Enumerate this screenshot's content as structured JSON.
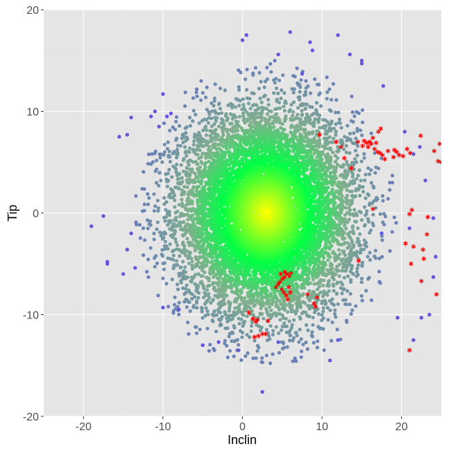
{
  "chart_data": {
    "type": "scatter",
    "title": "",
    "xlabel": "Inclin",
    "ylabel": "Tip",
    "xlim": [
      -25,
      25
    ],
    "ylim": [
      -20,
      20
    ],
    "x_ticks": [
      -20,
      -10,
      0,
      10,
      20
    ],
    "y_ticks": [
      -20,
      -10,
      0,
      10,
      20
    ],
    "x_tick_labels": [
      "-20",
      "-10",
      "0",
      "10",
      "20"
    ],
    "y_tick_labels": [
      "-20",
      "-10",
      "0",
      "10",
      "20"
    ],
    "grid": true,
    "legend": "none",
    "colors": {
      "panel_background": "#e5e5e5",
      "grid_major": "#ffffff",
      "grid_minor": "#f2f2f2",
      "core": "#ffff00",
      "mid": "#00ff44",
      "outer": "#7fb08c",
      "edge": "#6a7fb8",
      "outlier": "#6655dd",
      "flagged": "#ff0000"
    },
    "cloud": {
      "center": [
        3.0,
        0.0
      ],
      "spread": [
        5.6,
        5.1
      ]
    },
    "outlier_points": [
      [
        -19,
        -1.3
      ],
      [
        -17.5,
        -0.3
      ],
      [
        -15.5,
        7.5
      ],
      [
        -14.5,
        7.7
      ],
      [
        -14,
        9.4
      ],
      [
        -17,
        -5
      ],
      [
        -17,
        -4.8
      ],
      [
        -15,
        -6
      ],
      [
        -14.5,
        -3.6
      ],
      [
        -14,
        -2
      ],
      [
        -13.5,
        -5.4
      ],
      [
        -11.5,
        9.5
      ],
      [
        -11,
        10
      ],
      [
        -10,
        11.7
      ],
      [
        -9.5,
        9.5
      ],
      [
        -10.5,
        8.5
      ],
      [
        -10,
        -9.3
      ],
      [
        -8,
        -9.5
      ],
      [
        -3,
        -12.7
      ],
      [
        -0.5,
        -13.5
      ],
      [
        2.5,
        -17.6
      ],
      [
        11,
        -14.5
      ],
      [
        12,
        -12.5
      ],
      [
        7.5,
        13.7
      ],
      [
        6,
        17.8
      ],
      [
        12,
        17.5
      ],
      [
        4.5,
        15.6
      ],
      [
        0,
        17
      ],
      [
        0.5,
        17.5
      ],
      [
        8.5,
        16.8
      ],
      [
        8.8,
        16
      ],
      [
        13.5,
        15.6
      ],
      [
        15,
        15
      ],
      [
        15,
        14.7
      ],
      [
        17.7,
        12.5
      ],
      [
        20.4,
        8
      ],
      [
        22.3,
        6.5
      ],
      [
        21.5,
        5.8
      ],
      [
        23,
        3.2
      ],
      [
        24,
        -0.5
      ],
      [
        24,
        -6.3
      ],
      [
        23.5,
        -10
      ],
      [
        22.5,
        -10.3
      ],
      [
        21.5,
        -12.5
      ],
      [
        19.5,
        -10.3
      ],
      [
        17.5,
        -2
      ],
      [
        21,
        -1.5
      ],
      [
        24.3,
        -4.3
      ],
      [
        -5,
        -13
      ],
      [
        4.5,
        -12.7
      ],
      [
        -9,
        9.8
      ]
    ],
    "flagged_points": [
      [
        9.7,
        7.7
      ],
      [
        11.8,
        7
      ],
      [
        12.4,
        6.5
      ],
      [
        12.8,
        5.4
      ],
      [
        13.7,
        4.4
      ],
      [
        14.5,
        7
      ],
      [
        15.1,
        6.6
      ],
      [
        15.3,
        7.1
      ],
      [
        15.6,
        6.9
      ],
      [
        15.8,
        6.5
      ],
      [
        16,
        7
      ],
      [
        16.2,
        6.8
      ],
      [
        16.4,
        7.4
      ],
      [
        16.6,
        6.3
      ],
      [
        16.8,
        6.9
      ],
      [
        17.1,
        8
      ],
      [
        17.4,
        8.3
      ],
      [
        17,
        6
      ],
      [
        17.3,
        5.9
      ],
      [
        17.6,
        5.7
      ],
      [
        17.9,
        5.3
      ],
      [
        18.3,
        6.1
      ],
      [
        19.1,
        6.2
      ],
      [
        19.4,
        6
      ],
      [
        19.7,
        5.7
      ],
      [
        19,
        5.5
      ],
      [
        20.2,
        5.6
      ],
      [
        20.7,
        6.3
      ],
      [
        21.1,
        5.9
      ],
      [
        22.4,
        7.6
      ],
      [
        24.1,
        6.1
      ],
      [
        24.8,
        6.8
      ],
      [
        25,
        5
      ],
      [
        24.6,
        5.1
      ],
      [
        16.4,
        0.4
      ],
      [
        21.3,
        0.3
      ],
      [
        21,
        -0.1
      ],
      [
        20.5,
        -3
      ],
      [
        21.5,
        -3.3
      ],
      [
        21.2,
        -5
      ],
      [
        22.7,
        -3.6
      ],
      [
        22.8,
        -4.5
      ],
      [
        23.2,
        -2.1
      ],
      [
        23.3,
        -0.4
      ],
      [
        24.4,
        -8
      ],
      [
        22.5,
        -6.7
      ],
      [
        14.6,
        -4.7
      ],
      [
        4.2,
        -7.3
      ],
      [
        4.5,
        -7.0
      ],
      [
        4.7,
        -6.8
      ],
      [
        5,
        -6.5
      ],
      [
        5.3,
        -6.3
      ],
      [
        5.6,
        -6
      ],
      [
        5.9,
        -6.2
      ],
      [
        6.1,
        -5.9
      ],
      [
        4.9,
        -7.5
      ],
      [
        5.2,
        -7.8
      ],
      [
        5.5,
        -8.1
      ],
      [
        5.8,
        -7.3
      ],
      [
        4.8,
        -6
      ],
      [
        5.3,
        -5.8
      ],
      [
        6.0,
        -7.8
      ],
      [
        5.7,
        -8.5
      ],
      [
        8.2,
        -8
      ],
      [
        9,
        -8.9
      ],
      [
        9.4,
        -8.3
      ],
      [
        9.2,
        -9.2
      ],
      [
        0.8,
        -9.8
      ],
      [
        1.3,
        -10.4
      ],
      [
        1.7,
        -10.7
      ],
      [
        1.9,
        -10.5
      ],
      [
        1.5,
        -12.2
      ],
      [
        2,
        -12.1
      ],
      [
        2.5,
        -11.9
      ],
      [
        2.9,
        -11.9
      ],
      [
        3.2,
        -10.6
      ],
      [
        21,
        -13.5
      ]
    ]
  }
}
